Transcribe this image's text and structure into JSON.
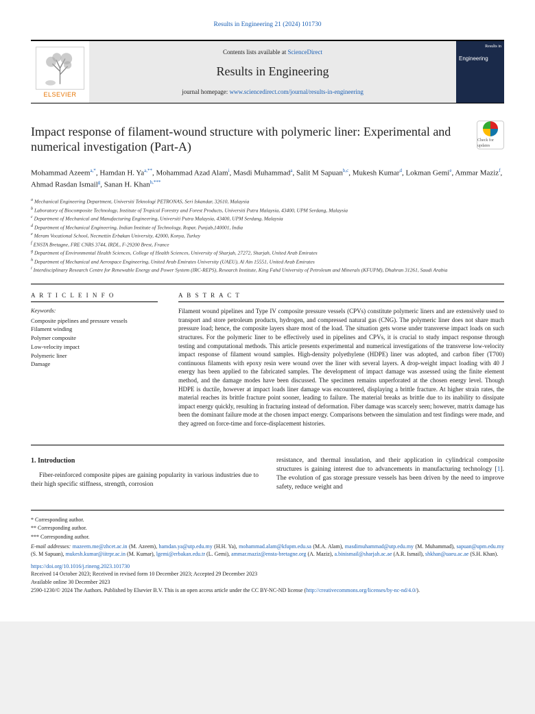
{
  "journal_ref": "Results in Engineering 21 (2024) 101730",
  "header": {
    "contents_text": "Contents lists available at ",
    "sciencedirect": "ScienceDirect",
    "journal_name": "Results in Engineering",
    "homepage_label": "journal homepage: ",
    "homepage_url": "www.sciencedirect.com/journal/results-in-engineering",
    "elsevier": "ELSEVIER",
    "cover_brand": "Results in",
    "cover_title": "Engineering"
  },
  "check_badge": "Check for updates",
  "title": "Impact response of filament-wound structure with polymeric liner: Experimental and numerical investigation (Part-A)",
  "authors_html": "Mohammad Azeem|a,*|, Hamdan H. Ya|a,**|, Mohammad Azad Alam|i|, Masdi Muhammad|a|, Salit M Sapuan|b,c|, Mukesh Kumar|d|, Lokman Gemi|e|, Ammar Maziz|f|, Ahmad Rasdan Ismail|g|, Sanan H. Khan|h,***|",
  "affils": [
    "a Mechanical Engineering Department, Universiti Teknologi PETRONAS, Seri Iskandar, 32610, Malaysia",
    "b Laboratory of Biocomposite Technology, Institute of Tropical Forestry and Forest Products, Universiti Putra Malaysia, 43400, UPM Serdang, Malaysia",
    "c Department of Mechanical and Manufacturing Engineering, Universiti Putra Malaysia, 43400, UPM Serdang, Malaysia",
    "d Department of Mechanical Engineering, Indian Institute of Technology, Ropar, Punjab,140001, India",
    "e Meram Vocational School, Necmettin Erbakan University, 42000, Konya, Turkey",
    "f ENSTA Bretagne, FRE CNRS 3744, IRDL, F-29200 Brest, France",
    "g Department of Environmental Health Sciences, College of Health Sciences, University of Sharjah, 27272, Sharjah, United Arab Emirates",
    "h Department of Mechanical and Aerospace Engineering, United Arab Emirates University (UAEU), Al Ain 15551, United Arab Emirates",
    "i Interdisciplinary Research Centre for Renewable Energy and Power System (IRC-REPS), Research Institute, King Fahd University of Petroleum and Minerals (KFUPM), Dhahran 31261, Saudi Arabia"
  ],
  "article_info_label": "A R T I C L E  I N F O",
  "abstract_label": "A B S T R A C T",
  "keywords_label": "Keywords:",
  "keywords": [
    "Composite pipelines and pressure vessels",
    "Filament winding",
    "Polymer composite",
    "Low-velocity impact",
    "Polymeric liner",
    "Damage"
  ],
  "abstract": "Filament wound pipelines and Type IV composite pressure vessels (CPVs) constitute polymeric liners and are extensively used to transport and store petroleum products, hydrogen, and compressed natural gas (CNG). The polymeric liner does not share much pressure load; hence, the composite layers share most of the load. The situation gets worse under transverse impact loads on such structures. For the polymeric liner to be effectively used in pipelines and CPVs, it is crucial to study impact response through testing and computational methods. This article presents experimental and numerical investigations of the transverse low-velocity impact response of filament wound samples. High-density polyethylene (HDPE) liner was adopted, and carbon fiber (T700) continuous filaments with epoxy resin were wound over the liner with several layers. A drop-weight impact loading with 40 J energy has been applied to the fabricated samples. The development of impact damage was assessed using the finite element method, and the damage modes have been discussed. The specimen remains unperforated at the chosen energy level. Though HDPE is ductile, however at impact loads liner damage was encountered, displaying a brittle fracture. At higher strain rates, the material reaches its brittle fracture point sooner, leading to failure. The material breaks as brittle due to its inability to dissipate impact energy quickly, resulting in fracturing instead of deformation. Fiber damage was scarcely seen; however, matrix damage has been the dominant failure mode at the chosen impact energy. Comparisons between the simulation and test findings were made, and they agreed on force-time and force-displacement histories.",
  "intro_heading": "1. Introduction",
  "intro_p1": "Fiber-reinforced composite pipes are gaining popularity in various industries due to their high specific stiffness, strength, corrosion",
  "intro_p2a": "resistance, and thermal insulation, and their application in cylindrical composite structures is gaining interest due to advancements in manufacturing technology [",
  "intro_cite1": "1",
  "intro_p2b": "]. The evolution of gas storage pressure vessels has been driven by the need to improve safety, reduce weight and",
  "footer": {
    "corr1": "* Corresponding author.",
    "corr2": "** Corresponding author.",
    "corr3": "*** Corresponding author.",
    "email_label": "E-mail addresses: ",
    "emails": [
      {
        "e": "mazeem.me@zhcet.ac.in",
        "n": " (M. Azeem), "
      },
      {
        "e": "hamdan.ya@utp.edu.my",
        "n": " (H.H. Ya), "
      },
      {
        "e": "mohammad.alam@kfupm.edu.sa",
        "n": " (M.A. Alam), "
      },
      {
        "e": "masdimuhammad@utp.edu.my",
        "n": " (M. Muhammad), "
      },
      {
        "e": "sapuan@upm.edu.my",
        "n": " (S. M Sapuan), "
      },
      {
        "e": "mukesh.kumar@iitrpr.ac.in",
        "n": " (M. Kumar), "
      },
      {
        "e": "lgemi@erbakan.edu.tr",
        "n": " (L. Gemi), "
      },
      {
        "e": "ammar.maziz@ensta-bretagne.org",
        "n": " (A. Maziz), "
      },
      {
        "e": "a.binismail@sharjah.ac.ae",
        "n": " (A.R. Ismail), "
      },
      {
        "e": "shkhan@uaeu.ac.ae",
        "n": " (S.H. Khan)."
      }
    ],
    "doi": "https://doi.org/10.1016/j.rineng.2023.101730",
    "dates": "Received 14 October 2023; Received in revised form 10 December 2023; Accepted 29 December 2023",
    "online": "Available online 30 December 2023",
    "license_a": "2590-1230/© 2024 The Authors. Published by Elsevier B.V. This is an open access article under the CC BY-NC-ND license (",
    "license_url": "http://creativecommons.org/licenses/by-nc-nd/4.0/",
    "license_b": ")."
  }
}
